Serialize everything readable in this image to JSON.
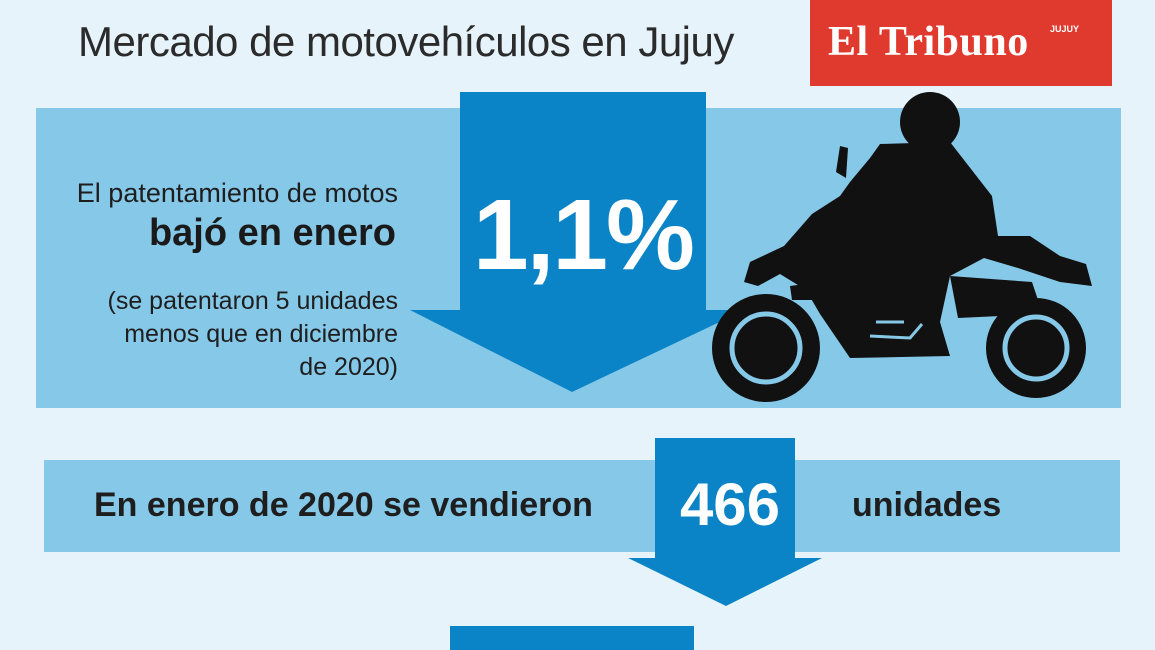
{
  "header": {
    "title": "Mercado de motovehículos en Jujuy",
    "logo_text": "El Tribuno",
    "logo_sub": "JUJUY"
  },
  "panel1": {
    "lead": "El patentamiento de motos",
    "strong": "bajó en enero",
    "note_lines": [
      "(se patentaron 5 unidades",
      "menos que en diciembre",
      "de 2020)"
    ],
    "percent": "1,1%"
  },
  "panel2": {
    "left": "En enero de 2020 se vendieron",
    "number": "466",
    "right": "unidades"
  },
  "colors": {
    "background": "#e6f3fb",
    "band": "#86c8e8",
    "arrow": "#0a84c6",
    "brand": "#e03a2f",
    "silhouette": "#111111"
  },
  "icons": {
    "motorcycle": "motorcycle-rider-icon",
    "down_arrow": "down-arrow-icon"
  }
}
